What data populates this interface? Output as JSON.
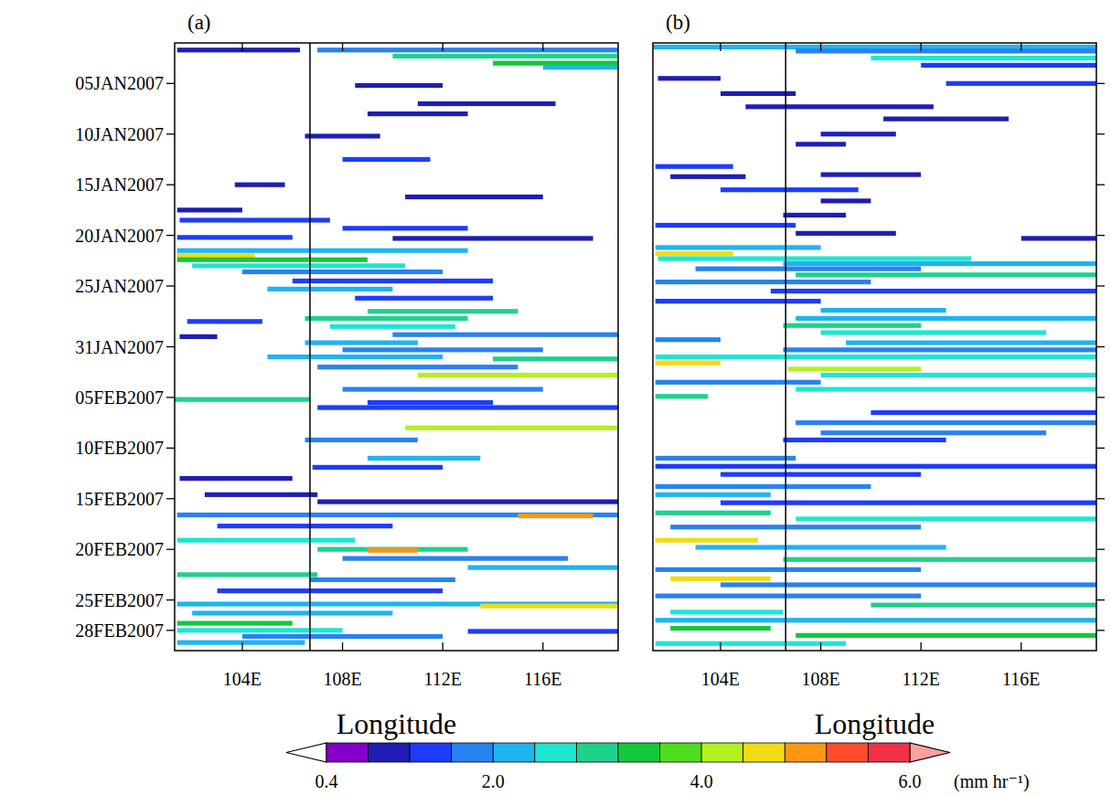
{
  "chart_data": [
    {
      "type": "heatmap",
      "title": "(a)",
      "xlabel": "Longitude",
      "tick_labels": true,
      "xlim": [
        101.3,
        119.0
      ],
      "ylim": [
        0,
        60
      ],
      "xticks": [
        {
          "value": 104,
          "label": "104E"
        },
        {
          "value": 108,
          "label": "108E"
        },
        {
          "value": 112,
          "label": "112E"
        },
        {
          "value": 116,
          "label": "116E"
        }
      ],
      "yticks": [
        {
          "value": 4,
          "label": "05JAN2007"
        },
        {
          "value": 9,
          "label": "10JAN2007"
        },
        {
          "value": 14,
          "label": "15JAN2007"
        },
        {
          "value": 19,
          "label": "20JAN2007"
        },
        {
          "value": 24,
          "label": "25JAN2007"
        },
        {
          "value": 30,
          "label": "31JAN2007"
        },
        {
          "value": 35,
          "label": "05FEB2007"
        },
        {
          "value": 40,
          "label": "10FEB2007"
        },
        {
          "value": 45,
          "label": "15FEB2007"
        },
        {
          "value": 50,
          "label": "20FEB2007"
        },
        {
          "value": 55,
          "label": "25FEB2007"
        },
        {
          "value": 58,
          "label": "28FEB2007"
        }
      ],
      "reference_x": 106.7,
      "streaks": [
        [
          0.7,
          101.4,
          106.3,
          1.0
        ],
        [
          0.7,
          107.0,
          119.0,
          1.8
        ],
        [
          1.3,
          110.0,
          119.0,
          2.8
        ],
        [
          2.0,
          114.0,
          119.0,
          3.5
        ],
        [
          2.4,
          116.0,
          119.0,
          2.2
        ],
        [
          4.2,
          108.5,
          112.0,
          0.8
        ],
        [
          6.0,
          111.0,
          116.5,
          1.0
        ],
        [
          7.0,
          109.0,
          113.0,
          0.8
        ],
        [
          9.2,
          106.5,
          109.5,
          0.8
        ],
        [
          11.5,
          108.0,
          111.5,
          1.2
        ],
        [
          14.0,
          103.7,
          105.7,
          1.0
        ],
        [
          15.2,
          110.5,
          116.0,
          0.8
        ],
        [
          16.5,
          101.4,
          104.0,
          1.0
        ],
        [
          17.5,
          101.5,
          107.5,
          1.2
        ],
        [
          18.3,
          108.0,
          113.0,
          1.5
        ],
        [
          19.2,
          101.4,
          106.0,
          1.2
        ],
        [
          19.3,
          110.0,
          118.0,
          1.0
        ],
        [
          20.5,
          101.4,
          113.0,
          2.0
        ],
        [
          21.0,
          101.4,
          104.5,
          4.5
        ],
        [
          21.4,
          101.4,
          109.0,
          3.2
        ],
        [
          22.0,
          102.0,
          110.5,
          2.4
        ],
        [
          22.6,
          104.0,
          112.0,
          1.8
        ],
        [
          23.5,
          106.0,
          114.0,
          1.2
        ],
        [
          24.3,
          105.0,
          110.0,
          2.0
        ],
        [
          25.2,
          108.5,
          114.0,
          1.5
        ],
        [
          26.5,
          109.0,
          115.0,
          2.8
        ],
        [
          27.2,
          106.5,
          113.0,
          3.0
        ],
        [
          27.5,
          101.8,
          104.8,
          1.4
        ],
        [
          28.0,
          107.5,
          112.5,
          2.5
        ],
        [
          28.8,
          110.0,
          119.0,
          1.6
        ],
        [
          29.0,
          101.5,
          103.0,
          1.0
        ],
        [
          29.6,
          106.5,
          111.0,
          2.2
        ],
        [
          30.3,
          108.0,
          116.0,
          1.8
        ],
        [
          31.0,
          105.0,
          112.0,
          2.0
        ],
        [
          31.2,
          114.0,
          119.0,
          3.0
        ],
        [
          32.0,
          107.0,
          115.0,
          1.6
        ],
        [
          32.8,
          111.0,
          119.0,
          4.0
        ],
        [
          34.2,
          108.0,
          116.0,
          1.8
        ],
        [
          35.2,
          101.3,
          106.7,
          3.0
        ],
        [
          35.5,
          109.0,
          114.0,
          1.2
        ],
        [
          36.0,
          107.0,
          119.0,
          1.4
        ],
        [
          38.0,
          110.5,
          119.0,
          4.2
        ],
        [
          39.2,
          106.5,
          111.0,
          1.8
        ],
        [
          41.0,
          109.0,
          113.5,
          2.0
        ],
        [
          41.9,
          106.8,
          112.0,
          1.2
        ],
        [
          43.0,
          101.5,
          106.0,
          1.0
        ],
        [
          44.6,
          102.5,
          107.0,
          1.0
        ],
        [
          45.3,
          107.0,
          119.0,
          1.0
        ],
        [
          46.6,
          101.4,
          119.0,
          1.6
        ],
        [
          46.7,
          115.0,
          118.0,
          5.0
        ],
        [
          47.7,
          103.0,
          110.0,
          1.2
        ],
        [
          49.1,
          101.4,
          108.5,
          2.5
        ],
        [
          50.0,
          107.0,
          113.0,
          3.0
        ],
        [
          50.1,
          109.0,
          111.0,
          5.0
        ],
        [
          50.9,
          108.0,
          117.0,
          1.8
        ],
        [
          51.8,
          113.0,
          119.0,
          2.2
        ],
        [
          52.5,
          101.4,
          107.0,
          3.0
        ],
        [
          53.0,
          106.7,
          112.5,
          1.6
        ],
        [
          54.1,
          103.0,
          112.0,
          1.5
        ],
        [
          55.4,
          101.4,
          119.0,
          2.0
        ],
        [
          55.6,
          113.5,
          119.0,
          4.5
        ],
        [
          56.3,
          102.0,
          110.0,
          2.0
        ],
        [
          57.3,
          101.4,
          106.0,
          3.5
        ],
        [
          58.0,
          101.4,
          108.0,
          2.5
        ],
        [
          58.1,
          113.0,
          119.0,
          1.2
        ],
        [
          58.6,
          104.0,
          112.0,
          1.6
        ],
        [
          59.2,
          101.4,
          106.5,
          2.0
        ]
      ]
    },
    {
      "type": "heatmap",
      "title": "(b)",
      "xlabel": "Longitude",
      "tick_labels": "x",
      "xlim": [
        101.3,
        119.0
      ],
      "ylim": [
        0,
        60
      ],
      "xticks": [
        {
          "value": 104,
          "label": "104E"
        },
        {
          "value": 108,
          "label": "108E"
        },
        {
          "value": 112,
          "label": "112E"
        },
        {
          "value": 116,
          "label": "116E"
        }
      ],
      "yticks": [
        4,
        9,
        14,
        19,
        24,
        30,
        35,
        40,
        45,
        50,
        55,
        58
      ],
      "reference_x": 106.6,
      "streaks": [
        [
          0.4,
          101.3,
          119.0,
          2.0
        ],
        [
          0.8,
          107.0,
          119.0,
          1.6
        ],
        [
          1.5,
          110.0,
          119.0,
          2.4
        ],
        [
          2.2,
          112.0,
          119.0,
          1.2
        ],
        [
          3.5,
          101.5,
          104.0,
          0.8
        ],
        [
          4.0,
          113.0,
          119.0,
          1.2
        ],
        [
          5.0,
          104.0,
          107.0,
          1.0
        ],
        [
          6.3,
          105.0,
          112.5,
          1.0
        ],
        [
          7.5,
          110.5,
          115.5,
          1.0
        ],
        [
          9.0,
          108.0,
          111.0,
          0.8
        ],
        [
          10.0,
          107.0,
          109.0,
          1.0
        ],
        [
          12.2,
          101.4,
          104.5,
          1.2
        ],
        [
          13.0,
          108.0,
          112.0,
          0.9
        ],
        [
          13.2,
          102.0,
          105.0,
          1.0
        ],
        [
          14.5,
          104.0,
          109.5,
          1.2
        ],
        [
          15.6,
          108.0,
          110.0,
          0.8
        ],
        [
          17.0,
          106.5,
          109.0,
          1.0
        ],
        [
          18.0,
          101.4,
          107.0,
          1.2
        ],
        [
          18.8,
          107.0,
          111.0,
          1.0
        ],
        [
          19.3,
          116.0,
          119.0,
          0.8
        ],
        [
          20.2,
          101.4,
          108.0,
          2.0
        ],
        [
          20.8,
          101.4,
          104.5,
          4.6
        ],
        [
          21.3,
          101.5,
          114.0,
          2.6
        ],
        [
          21.8,
          106.5,
          119.0,
          2.2
        ],
        [
          22.3,
          103.0,
          112.0,
          1.8
        ],
        [
          22.9,
          107.0,
          119.0,
          3.0
        ],
        [
          23.6,
          101.4,
          110.0,
          1.6
        ],
        [
          24.5,
          106.0,
          119.0,
          1.5
        ],
        [
          25.5,
          101.4,
          108.0,
          1.2
        ],
        [
          26.4,
          108.0,
          113.0,
          2.0
        ],
        [
          27.2,
          107.0,
          119.0,
          2.2
        ],
        [
          27.9,
          106.5,
          112.0,
          2.8
        ],
        [
          28.6,
          108.0,
          117.0,
          2.5
        ],
        [
          29.3,
          101.4,
          104.0,
          1.6
        ],
        [
          29.6,
          109.0,
          119.0,
          2.0
        ],
        [
          30.3,
          106.5,
          119.0,
          1.8
        ],
        [
          31.0,
          101.4,
          119.0,
          2.5
        ],
        [
          31.6,
          101.4,
          104.0,
          4.5
        ],
        [
          32.2,
          106.7,
          112.0,
          4.0
        ],
        [
          32.8,
          108.0,
          119.0,
          2.4
        ],
        [
          33.5,
          101.4,
          108.0,
          1.8
        ],
        [
          34.2,
          107.0,
          119.0,
          2.6
        ],
        [
          34.9,
          101.4,
          103.5,
          3.0
        ],
        [
          36.5,
          110.0,
          119.0,
          1.4
        ],
        [
          37.5,
          107.0,
          119.0,
          1.8
        ],
        [
          38.5,
          108.0,
          117.0,
          1.6
        ],
        [
          39.2,
          106.5,
          113.0,
          1.2
        ],
        [
          41.0,
          101.4,
          107.0,
          1.8
        ],
        [
          41.8,
          101.4,
          119.0,
          1.4
        ],
        [
          42.6,
          104.0,
          112.0,
          1.2
        ],
        [
          43.8,
          101.4,
          110.0,
          1.6
        ],
        [
          44.6,
          101.4,
          106.0,
          2.2
        ],
        [
          45.4,
          104.0,
          119.0,
          1.4
        ],
        [
          46.4,
          101.4,
          106.0,
          3.0
        ],
        [
          47.0,
          107.0,
          119.0,
          2.4
        ],
        [
          47.8,
          102.0,
          112.0,
          1.6
        ],
        [
          49.1,
          101.4,
          105.5,
          4.5
        ],
        [
          49.8,
          103.0,
          113.0,
          2.2
        ],
        [
          51.0,
          106.5,
          119.0,
          3.0
        ],
        [
          52.0,
          101.4,
          112.0,
          1.6
        ],
        [
          52.9,
          102.0,
          106.0,
          4.5
        ],
        [
          53.5,
          104.0,
          119.0,
          1.8
        ],
        [
          54.6,
          101.4,
          112.0,
          1.8
        ],
        [
          55.5,
          110.0,
          119.0,
          3.0
        ],
        [
          56.2,
          102.0,
          106.5,
          2.6
        ],
        [
          57.0,
          101.4,
          119.0,
          2.2
        ],
        [
          57.8,
          102.0,
          106.0,
          3.5
        ],
        [
          58.5,
          107.0,
          119.0,
          3.2
        ],
        [
          59.3,
          101.4,
          109.0,
          2.4
        ]
      ]
    }
  ],
  "colorbar": {
    "label": "(mm hr⁻¹)",
    "range": [
      0.4,
      6.0
    ],
    "levels": [
      0.4,
      0.8,
      1.2,
      1.6,
      2.0,
      2.4,
      2.8,
      3.2,
      3.6,
      4.0,
      4.4,
      4.8,
      5.2,
      5.6,
      6.0
    ],
    "colors": [
      "#8200c8",
      "#1e1eb4",
      "#1e3cff",
      "#2882f0",
      "#1eb4f0",
      "#1ee6d2",
      "#1ed28c",
      "#14c83c",
      "#50dc1e",
      "#b4f01e",
      "#f0dc14",
      "#ff9614",
      "#ff4b28",
      "#f03246"
    ],
    "ticks": [
      0.4,
      {
        "value": 2,
        "label": "2.0"
      },
      {
        "value": 4,
        "label": "4.0"
      },
      {
        "value": 6,
        "label": "6.0"
      }
    ]
  }
}
